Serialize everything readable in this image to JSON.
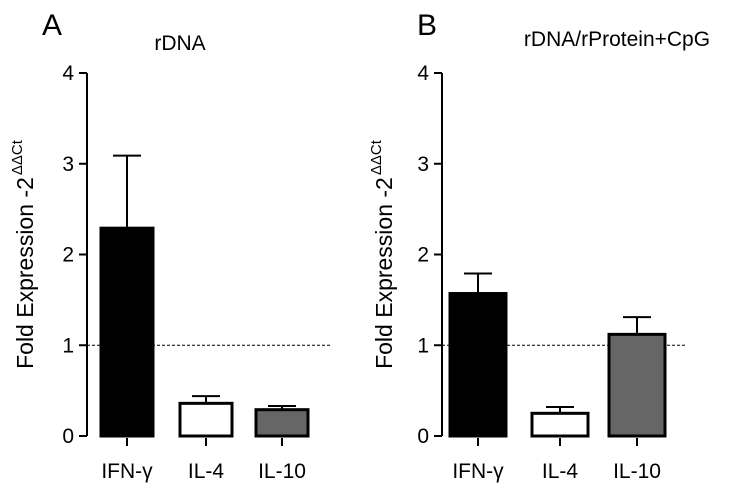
{
  "colors": {
    "axis": "#000000",
    "bar_ifn": "#000000",
    "bar_il4": "#ffffff",
    "bar_il10": "#666666",
    "reference_line": "#000000"
  },
  "chart_data": [
    {
      "type": "bar",
      "panel_label": "A",
      "title": "rDNA",
      "ylabel": "Fold Expression -2",
      "ylabel_superscript": "ΔΔCt",
      "ylim": [
        0,
        4
      ],
      "yticks": [
        "0",
        "1",
        "2",
        "3",
        "4"
      ],
      "reference_line": 1,
      "categories": [
        "IFN-γ",
        "IL-4",
        "IL-10"
      ],
      "values": [
        2.29,
        0.36,
        0.29
      ],
      "error_upper": [
        3.09,
        0.44,
        0.33
      ]
    },
    {
      "type": "bar",
      "panel_label": "B",
      "title": "rDNA/rProtein+CpG",
      "ylabel": "Fold Expression -2",
      "ylabel_superscript": "ΔΔCt",
      "ylim": [
        0,
        4
      ],
      "yticks": [
        "0",
        "1",
        "2",
        "3",
        "4"
      ],
      "reference_line": 1,
      "categories": [
        "IFN-γ",
        "IL-4",
        "IL-10"
      ],
      "values": [
        1.57,
        0.25,
        1.12
      ],
      "error_upper": [
        1.79,
        0.32,
        1.31
      ]
    }
  ]
}
